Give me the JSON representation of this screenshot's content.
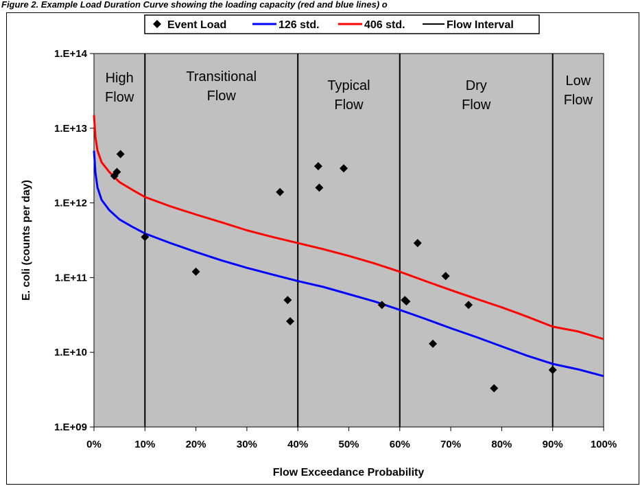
{
  "page": {
    "title": "Figure 2. Example Load Duration Curve showing the loading capacity (red and blue lines) o"
  },
  "chart_data": {
    "type": "scatter",
    "xlabel": "Flow Exceedance Probability",
    "ylabel": "E. coli (counts per day)",
    "xlim": [
      0,
      100
    ],
    "ylim": [
      1000000000,
      100000000000000
    ],
    "yscale": "log",
    "grid": false,
    "legend_position": "top",
    "x_ticks": [
      "0%",
      "10%",
      "20%",
      "30%",
      "40%",
      "50%",
      "60%",
      "70%",
      "80%",
      "90%",
      "100%"
    ],
    "x_tick_values": [
      0,
      10,
      20,
      30,
      40,
      50,
      60,
      70,
      80,
      90,
      100
    ],
    "y_ticks": [
      "1.E+09",
      "1.E+10",
      "1.E+11",
      "1.E+12",
      "1.E+13",
      "1.E+14"
    ],
    "y_tick_values": [
      1000000000,
      10000000000,
      100000000000,
      1000000000000,
      10000000000000,
      100000000000000
    ],
    "legend": [
      "Event Load",
      "126 std.",
      "406 std.",
      "Flow Interval"
    ],
    "colors": {
      "event": "#000000",
      "std126": "#0000ff",
      "std406": "#ff0000",
      "interval": "#000000",
      "plot_bg": "#c0c0c0"
    },
    "flow_intervals": [
      10,
      40,
      60,
      90
    ],
    "regions": [
      {
        "lines": [
          "High",
          "Flow"
        ],
        "center_x": 5
      },
      {
        "lines": [
          "Transitional",
          "Flow"
        ],
        "center_x": 25
      },
      {
        "lines": [
          "Typical",
          "Flow"
        ],
        "center_x": 50
      },
      {
        "lines": [
          "Dry",
          "Flow"
        ],
        "center_x": 75
      },
      {
        "lines": [
          "Low",
          "Flow"
        ],
        "center_x": 95
      }
    ],
    "series": [
      {
        "name": "126 std.",
        "type": "line",
        "x": [
          0,
          0.3,
          0.7,
          1.5,
          3,
          5,
          7.5,
          10,
          15,
          20,
          25,
          30,
          35,
          40,
          45,
          50,
          55,
          60,
          65,
          70,
          75,
          80,
          85,
          90,
          95,
          100
        ],
        "y": [
          5000000000000,
          2500000000000,
          1600000000000,
          1100000000000,
          800000000000,
          600000000000,
          480000000000,
          390000000000,
          290000000000,
          220000000000,
          170000000000,
          135000000000,
          110000000000,
          90000000000,
          75000000000,
          60000000000,
          48000000000,
          37000000000,
          28000000000,
          21000000000,
          16000000000,
          12000000000,
          9000000000,
          7000000000,
          5900000000,
          4800000000
        ]
      },
      {
        "name": "406 std.",
        "type": "line",
        "x": [
          0,
          0.3,
          0.7,
          1.5,
          3,
          5,
          7.5,
          10,
          15,
          20,
          25,
          30,
          35,
          40,
          45,
          50,
          55,
          60,
          65,
          70,
          75,
          80,
          85,
          90,
          95,
          100
        ],
        "y": [
          15000000000000,
          7500000000000,
          5000000000000,
          3500000000000,
          2600000000000,
          1900000000000,
          1500000000000,
          1200000000000,
          900000000000,
          700000000000,
          550000000000,
          430000000000,
          350000000000,
          290000000000,
          240000000000,
          195000000000,
          155000000000,
          120000000000,
          90000000000,
          68000000000,
          52000000000,
          40000000000,
          30000000000,
          22000000000,
          19000000000,
          15000000000
        ]
      },
      {
        "name": "Event Load",
        "type": "scatter",
        "x": [
          4,
          4.5,
          5.2,
          10,
          20,
          36.5,
          38,
          38.5,
          44,
          44.2,
          49,
          56.5,
          61,
          61.3,
          63.5,
          66.5,
          69,
          73.5,
          78.5,
          90
        ],
        "y": [
          2300000000000,
          2600000000000,
          4500000000000,
          350000000000,
          120000000000,
          1400000000000,
          50000000000,
          26000000000,
          3100000000000,
          1600000000000,
          2900000000000,
          43000000000,
          50000000000,
          48000000000,
          290000000000,
          13000000000,
          105000000000,
          43000000000,
          3300000000,
          5800000000
        ]
      }
    ]
  }
}
